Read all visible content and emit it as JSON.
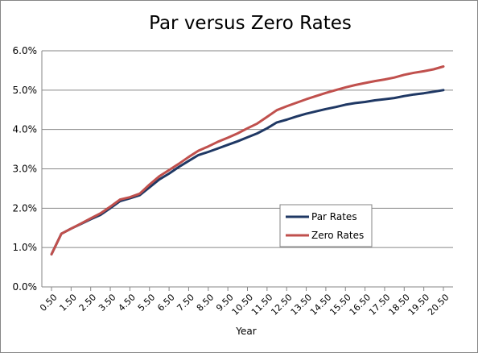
{
  "chart_data": {
    "type": "line",
    "title": "Par versus Zero Rates",
    "xlabel": "Year",
    "ylabel": "",
    "ylim": [
      0,
      0.06
    ],
    "y_ticks": [
      "0.0%",
      "1.0%",
      "2.0%",
      "3.0%",
      "4.0%",
      "5.0%",
      "6.0%"
    ],
    "grid": "horizontal",
    "legend_position": "inside-right",
    "x": [
      0.5,
      1.0,
      1.5,
      2.0,
      2.5,
      3.0,
      3.5,
      4.0,
      4.5,
      5.0,
      5.5,
      6.0,
      6.5,
      7.0,
      7.5,
      8.0,
      8.5,
      9.0,
      9.5,
      10.0,
      10.5,
      11.0,
      11.5,
      12.0,
      12.5,
      13.0,
      13.5,
      14.0,
      14.5,
      15.0,
      15.5,
      16.0,
      16.5,
      17.0,
      17.5,
      18.0,
      18.5,
      19.0,
      19.5,
      20.0,
      20.5
    ],
    "x_tick_labels": [
      "0.50",
      "1.50",
      "2.50",
      "3.50",
      "4.50",
      "5.50",
      "6.50",
      "7.50",
      "8.50",
      "9.50",
      "10.50",
      "11.50",
      "12.50",
      "13.50",
      "14.50",
      "15.50",
      "16.50",
      "17.50",
      "18.50",
      "19.50",
      "20.50"
    ],
    "series": [
      {
        "name": "Par Rates",
        "color": "#1F3864",
        "values": [
          0.0083,
          0.0135,
          0.0148,
          0.016,
          0.0172,
          0.0183,
          0.02,
          0.0218,
          0.0225,
          0.0233,
          0.0253,
          0.0273,
          0.0288,
          0.0305,
          0.032,
          0.0335,
          0.0343,
          0.0352,
          0.0361,
          0.037,
          0.038,
          0.039,
          0.0403,
          0.0418,
          0.0425,
          0.0433,
          0.044,
          0.0446,
          0.0452,
          0.0457,
          0.0463,
          0.0467,
          0.047,
          0.0474,
          0.0477,
          0.048,
          0.0485,
          0.0489,
          0.0492,
          0.0496,
          0.05
        ]
      },
      {
        "name": "Zero Rates",
        "color": "#C0504D",
        "values": [
          0.0083,
          0.0135,
          0.0148,
          0.0161,
          0.0174,
          0.0187,
          0.0204,
          0.0222,
          0.0228,
          0.0237,
          0.026,
          0.0281,
          0.0297,
          0.0313,
          0.033,
          0.0346,
          0.0357,
          0.0369,
          0.0379,
          0.039,
          0.0403,
          0.0415,
          0.0432,
          0.0449,
          0.0459,
          0.0468,
          0.0477,
          0.0485,
          0.0493,
          0.05,
          0.0507,
          0.0513,
          0.0518,
          0.0523,
          0.0527,
          0.0532,
          0.0539,
          0.0544,
          0.0548,
          0.0553,
          0.056
        ]
      }
    ]
  }
}
